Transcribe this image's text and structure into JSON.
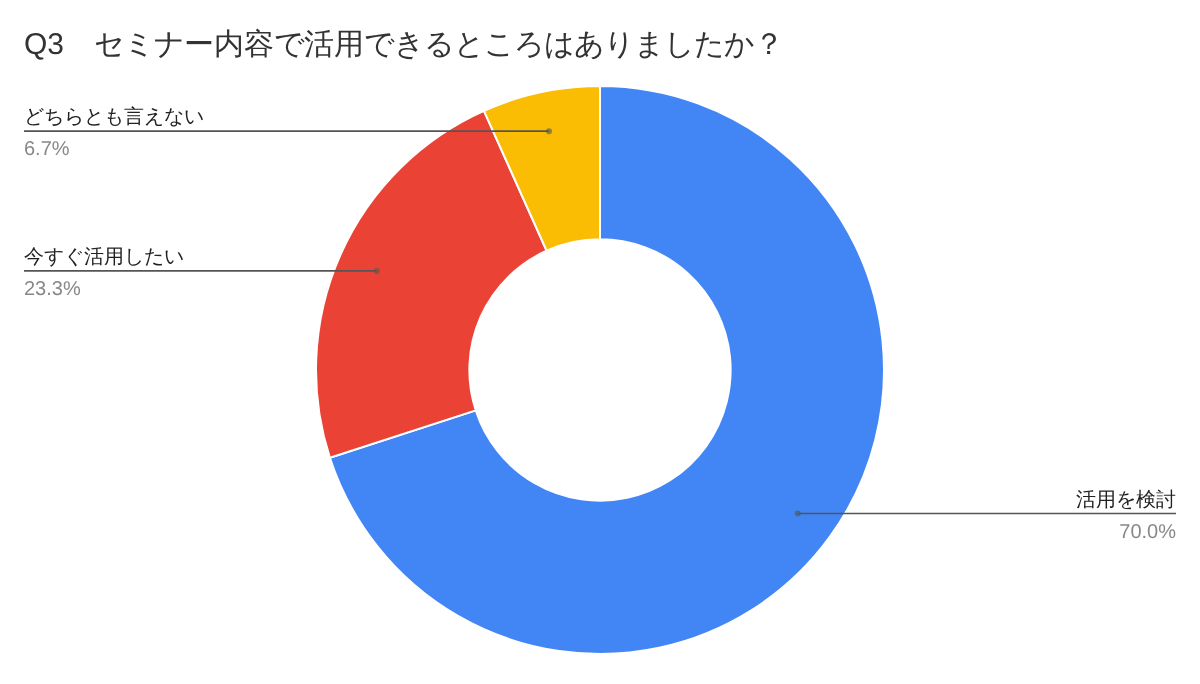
{
  "chart_data": {
    "type": "donut",
    "title": "Q3　セミナー内容で活用できるところはありましたか？",
    "categories": [
      "活用を検討",
      "今すぐ活用したい",
      "どちらとも言えない"
    ],
    "values": [
      70.0,
      23.3,
      6.7
    ],
    "colors": [
      "#4285f4",
      "#ea4335",
      "#fbbc04"
    ],
    "value_labels": [
      "70.0%",
      "23.3%",
      "6.7%"
    ]
  }
}
